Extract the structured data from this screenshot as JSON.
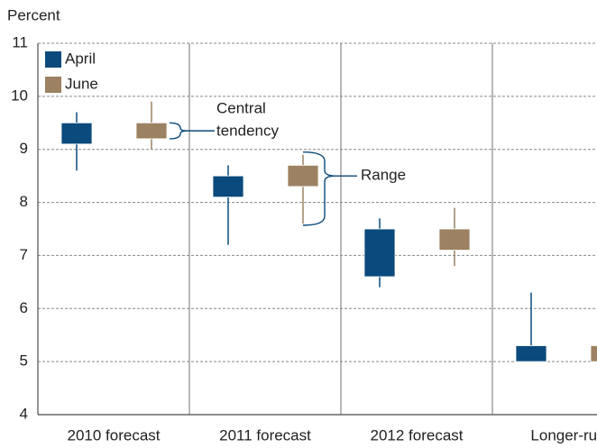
{
  "chart_data": {
    "type": "range-box",
    "y_label": "Percent",
    "categories": [
      "2010 forecast",
      "2011 forecast",
      "2012 forecast",
      "Longer-run"
    ],
    "series": [
      {
        "name": "April",
        "color": "#0b4a7c",
        "low": [
          8.6,
          7.2,
          6.4,
          5.0
        ],
        "central_low": [
          9.1,
          8.1,
          6.6,
          5.0
        ],
        "central_high": [
          9.5,
          8.5,
          7.5,
          5.3
        ],
        "high": [
          9.7,
          8.7,
          7.7,
          6.3
        ]
      },
      {
        "name": "June",
        "color": "#9c8262",
        "low": [
          9.0,
          7.6,
          6.8,
          5.0
        ],
        "central_low": [
          9.2,
          8.3,
          7.1,
          5.0
        ],
        "central_high": [
          9.5,
          8.7,
          7.5,
          5.3
        ],
        "high": [
          9.9,
          8.9,
          7.9,
          5.3
        ]
      }
    ],
    "annotations": {
      "central_tendency": [
        "Central",
        "tendency"
      ],
      "range": "Range"
    },
    "ylim": [
      4,
      11
    ],
    "yticks": [
      4,
      5,
      6,
      7,
      8,
      9,
      10,
      11
    ],
    "grid": true
  }
}
